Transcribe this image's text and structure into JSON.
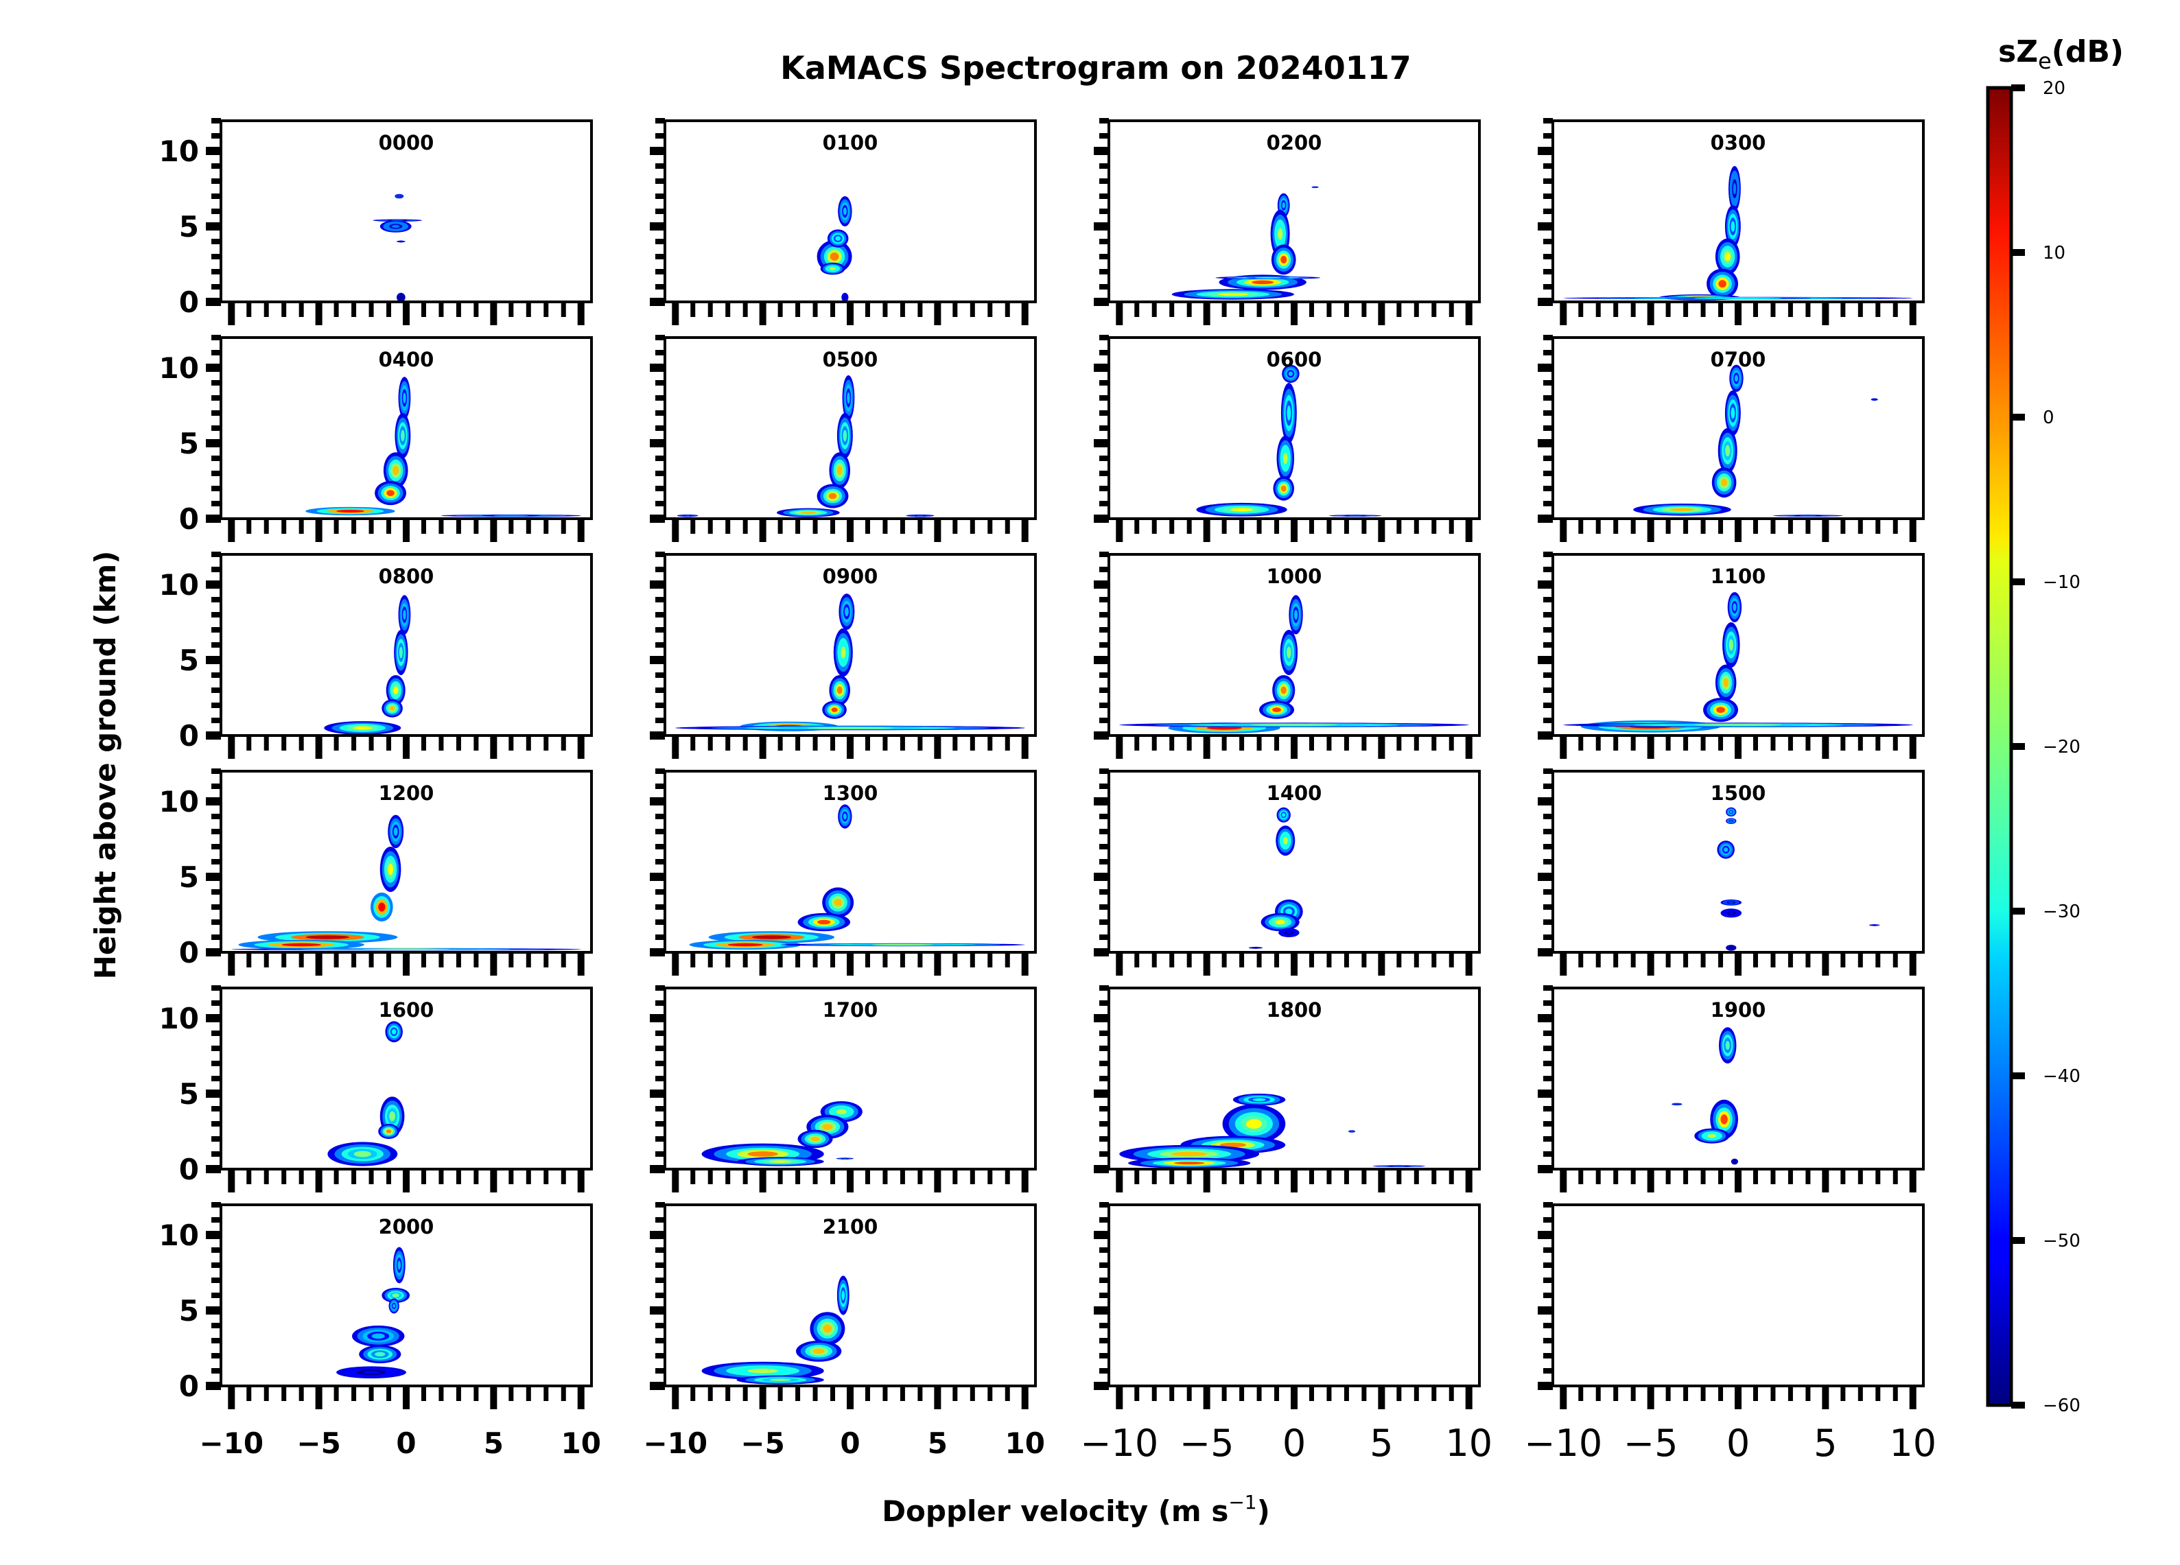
{
  "chart_data": {
    "type": "heatmap",
    "title": "KaMACS Spectrogram on 20240117",
    "xlabel": "Doppler velocity (m s",
    "xlabel_sup": "−1",
    "xlabel_close": ")",
    "ylabel": "Height above ground (km)",
    "xlim": [
      -10.6,
      10.6
    ],
    "ylim": [
      0,
      12
    ],
    "x_major_ticks": [
      -10,
      -5,
      0,
      5,
      10
    ],
    "x_tick_labels": [
      "−10",
      "−5",
      "0",
      "5",
      "10"
    ],
    "x_minor_step": 1,
    "y_major_ticks": [
      0,
      5,
      10
    ],
    "y_tick_labels": [
      "0",
      "5",
      "10"
    ],
    "y_minor_step": 1,
    "grid": false,
    "layout": {
      "rows": 6,
      "cols": 4
    },
    "colorbar": {
      "label_main": "sZ",
      "label_sub": "e",
      "label_unit": "(dB)",
      "colormap": "jet",
      "range": [
        -60,
        20
      ],
      "ticks": [
        20,
        10,
        0,
        -10,
        -20,
        -30,
        -40,
        -50,
        -60
      ],
      "tick_labels": [
        "20",
        "10",
        "0",
        "−10",
        "−20",
        "−30",
        "−40",
        "−50",
        "−60"
      ]
    },
    "panels": [
      {
        "title": "0000",
        "blobs": [
          [
            -0.6,
            5.0,
            0.9,
            0.4,
            -40
          ],
          [
            -0.5,
            5.4,
            1.4,
            0.08,
            -45
          ],
          [
            -0.4,
            7.0,
            0.25,
            0.15,
            -45
          ],
          [
            -0.3,
            4.0,
            0.25,
            0.06,
            -50
          ],
          [
            -0.3,
            0.3,
            0.25,
            0.3,
            -55
          ]
        ]
      },
      {
        "title": "0100",
        "blobs": [
          [
            -0.3,
            6.0,
            0.4,
            1.0,
            -35
          ],
          [
            -0.9,
            3.0,
            1.0,
            1.1,
            0
          ],
          [
            -1.0,
            2.2,
            0.7,
            0.4,
            -15
          ],
          [
            -0.7,
            4.2,
            0.6,
            0.6,
            -30
          ],
          [
            -0.3,
            0.3,
            0.2,
            0.3,
            -50
          ]
        ]
      },
      {
        "title": "0200",
        "blobs": [
          [
            -0.6,
            6.4,
            0.35,
            0.8,
            -35
          ],
          [
            -0.8,
            4.5,
            0.55,
            1.6,
            -15
          ],
          [
            -0.6,
            2.8,
            0.7,
            1.0,
            5
          ],
          [
            -1.8,
            1.3,
            2.5,
            0.5,
            5
          ],
          [
            -3.5,
            0.5,
            3.5,
            0.35,
            -10
          ],
          [
            -1.5,
            1.6,
            3.0,
            0.1,
            -30
          ],
          [
            1.2,
            7.6,
            0.2,
            0.06,
            -45
          ]
        ]
      },
      {
        "title": "0300",
        "blobs": [
          [
            -0.2,
            7.5,
            0.35,
            1.5,
            -40
          ],
          [
            -0.3,
            5.0,
            0.45,
            1.4,
            -30
          ],
          [
            -0.6,
            3.0,
            0.7,
            1.2,
            -10
          ],
          [
            -0.9,
            1.2,
            0.9,
            1.0,
            5
          ],
          [
            -2.2,
            0.3,
            2.3,
            0.2,
            0
          ],
          [
            0.0,
            0.25,
            10.0,
            0.08,
            -30
          ]
        ]
      },
      {
        "title": "0400",
        "blobs": [
          [
            -0.1,
            8.0,
            0.35,
            1.4,
            -35
          ],
          [
            -0.2,
            5.5,
            0.45,
            1.5,
            -25
          ],
          [
            -0.6,
            3.2,
            0.7,
            1.2,
            -5
          ],
          [
            -0.9,
            1.7,
            0.9,
            0.8,
            5
          ],
          [
            -3.2,
            0.5,
            3.2,
            0.35,
            10
          ],
          [
            6.0,
            0.2,
            4.0,
            0.08,
            -40
          ]
        ]
      },
      {
        "title": "0500",
        "blobs": [
          [
            -0.1,
            8.0,
            0.35,
            1.5,
            -35
          ],
          [
            -0.3,
            5.5,
            0.45,
            1.5,
            -25
          ],
          [
            -0.6,
            3.2,
            0.6,
            1.2,
            -5
          ],
          [
            -1.0,
            1.5,
            0.9,
            0.8,
            0
          ],
          [
            -2.4,
            0.4,
            1.8,
            0.3,
            -5
          ],
          [
            4.0,
            0.2,
            0.8,
            0.08,
            -45
          ],
          [
            -9.3,
            0.2,
            0.6,
            0.08,
            -45
          ]
        ]
      },
      {
        "title": "0600",
        "blobs": [
          [
            -0.2,
            9.6,
            0.5,
            0.6,
            -35
          ],
          [
            -0.3,
            7.0,
            0.45,
            2.0,
            -30
          ],
          [
            -0.5,
            4.0,
            0.5,
            1.5,
            -15
          ],
          [
            -0.6,
            2.0,
            0.6,
            0.8,
            0
          ],
          [
            -3.0,
            0.6,
            2.6,
            0.45,
            -10
          ],
          [
            3.5,
            0.2,
            1.5,
            0.06,
            -45
          ]
        ]
      },
      {
        "title": "0700",
        "blobs": [
          [
            -0.1,
            9.3,
            0.4,
            0.9,
            -35
          ],
          [
            -0.3,
            7.0,
            0.45,
            1.5,
            -30
          ],
          [
            -0.6,
            4.5,
            0.55,
            1.5,
            -20
          ],
          [
            -0.8,
            2.4,
            0.7,
            1.0,
            -5
          ],
          [
            -3.2,
            0.6,
            2.8,
            0.4,
            -5
          ],
          [
            4.0,
            0.2,
            2.0,
            0.06,
            -45
          ],
          [
            7.8,
            7.9,
            0.2,
            0.08,
            -50
          ]
        ]
      },
      {
        "title": "0800",
        "blobs": [
          [
            -0.1,
            8.0,
            0.35,
            1.3,
            -35
          ],
          [
            -0.3,
            5.5,
            0.4,
            1.5,
            -25
          ],
          [
            -0.6,
            3.0,
            0.55,
            1.0,
            -10
          ],
          [
            -0.8,
            1.8,
            0.6,
            0.6,
            -5
          ],
          [
            -2.5,
            0.5,
            2.2,
            0.45,
            -10
          ]
        ]
      },
      {
        "title": "0900",
        "blobs": [
          [
            -0.2,
            8.2,
            0.45,
            1.2,
            -35
          ],
          [
            -0.4,
            5.5,
            0.55,
            1.6,
            -15
          ],
          [
            -0.6,
            3.0,
            0.6,
            1.0,
            0
          ],
          [
            -0.9,
            1.7,
            0.7,
            0.6,
            5
          ],
          [
            -3.5,
            0.6,
            3.5,
            0.4,
            10
          ],
          [
            0.0,
            0.5,
            10.0,
            0.15,
            -20
          ]
        ]
      },
      {
        "title": "1000",
        "blobs": [
          [
            0.1,
            8.0,
            0.4,
            1.3,
            -35
          ],
          [
            -0.3,
            5.5,
            0.5,
            1.5,
            -20
          ],
          [
            -0.6,
            3.0,
            0.65,
            1.0,
            0
          ],
          [
            -1.0,
            1.7,
            1.0,
            0.6,
            5
          ],
          [
            -4.0,
            0.5,
            4.0,
            0.45,
            10
          ],
          [
            0.0,
            0.7,
            10.0,
            0.15,
            -20
          ]
        ]
      },
      {
        "title": "1100",
        "blobs": [
          [
            -0.2,
            8.5,
            0.4,
            1.0,
            -35
          ],
          [
            -0.4,
            6.0,
            0.5,
            1.5,
            -20
          ],
          [
            -0.7,
            3.5,
            0.6,
            1.2,
            -5
          ],
          [
            -1.0,
            1.7,
            1.0,
            0.8,
            5
          ],
          [
            -5.0,
            0.6,
            5.0,
            0.5,
            15
          ],
          [
            0.0,
            0.7,
            10.0,
            0.15,
            -20
          ]
        ]
      },
      {
        "title": "1200",
        "blobs": [
          [
            -0.6,
            8.0,
            0.45,
            1.1,
            -35
          ],
          [
            -0.9,
            5.5,
            0.6,
            1.5,
            -10
          ],
          [
            -1.4,
            3.0,
            0.8,
            1.2,
            10
          ],
          [
            -4.5,
            1.0,
            5.0,
            0.5,
            15
          ],
          [
            -6.0,
            0.5,
            4.5,
            0.4,
            10
          ],
          [
            0.0,
            0.2,
            10.0,
            0.08,
            -20
          ]
        ]
      },
      {
        "title": "1300",
        "blobs": [
          [
            -0.3,
            9.0,
            0.4,
            0.8,
            -35
          ],
          [
            -0.7,
            3.3,
            0.9,
            1.0,
            -5
          ],
          [
            -1.5,
            2.0,
            1.5,
            0.6,
            5
          ],
          [
            -4.5,
            1.0,
            4.5,
            0.5,
            15
          ],
          [
            -6.0,
            0.5,
            4.0,
            0.4,
            10
          ],
          [
            3.0,
            0.5,
            7.0,
            0.1,
            -20
          ]
        ]
      },
      {
        "title": "1400",
        "blobs": [
          [
            -0.6,
            9.1,
            0.4,
            0.5,
            -30
          ],
          [
            -0.5,
            7.4,
            0.55,
            1.0,
            -15
          ],
          [
            -0.3,
            2.7,
            0.8,
            0.8,
            -30
          ],
          [
            -0.8,
            2.0,
            1.1,
            0.6,
            -10
          ],
          [
            -0.3,
            1.3,
            0.6,
            0.3,
            -50
          ],
          [
            -2.2,
            0.3,
            0.4,
            0.06,
            -55
          ]
        ]
      },
      {
        "title": "1500",
        "blobs": [
          [
            -0.4,
            9.3,
            0.3,
            0.3,
            -35
          ],
          [
            -0.4,
            8.7,
            0.3,
            0.2,
            -40
          ],
          [
            -0.7,
            6.8,
            0.5,
            0.6,
            -35
          ],
          [
            -0.4,
            3.3,
            0.6,
            0.2,
            -45
          ],
          [
            -0.4,
            2.6,
            0.6,
            0.3,
            -50
          ],
          [
            7.8,
            1.8,
            0.3,
            0.05,
            -50
          ],
          [
            -0.4,
            0.3,
            0.3,
            0.2,
            -55
          ]
        ]
      },
      {
        "title": "1600",
        "blobs": [
          [
            -0.7,
            9.1,
            0.5,
            0.7,
            -30
          ],
          [
            -0.8,
            3.5,
            0.7,
            1.3,
            -20
          ],
          [
            -1.0,
            2.5,
            0.6,
            0.5,
            0
          ],
          [
            -2.5,
            1.0,
            2.0,
            0.8,
            -20
          ]
        ]
      },
      {
        "title": "1700",
        "blobs": [
          [
            -0.5,
            3.8,
            1.2,
            0.7,
            -15
          ],
          [
            -1.3,
            2.8,
            1.2,
            0.8,
            -5
          ],
          [
            -2.0,
            2.0,
            1.0,
            0.6,
            -5
          ],
          [
            -5.0,
            1.0,
            3.5,
            0.7,
            0
          ],
          [
            -4.0,
            0.5,
            2.5,
            0.3,
            -10
          ],
          [
            -0.3,
            0.7,
            0.5,
            0.05,
            -45
          ]
        ]
      },
      {
        "title": "1800",
        "blobs": [
          [
            -2.0,
            4.6,
            1.5,
            0.4,
            -30
          ],
          [
            -2.3,
            3.0,
            1.8,
            1.3,
            -10
          ],
          [
            -3.5,
            1.6,
            3.0,
            0.6,
            0
          ],
          [
            -6.0,
            1.0,
            4.0,
            0.6,
            -5
          ],
          [
            -6.0,
            0.4,
            3.5,
            0.35,
            5
          ],
          [
            3.3,
            2.5,
            0.2,
            0.08,
            -45
          ],
          [
            6.0,
            0.2,
            1.5,
            0.06,
            -45
          ]
        ]
      },
      {
        "title": "1900",
        "blobs": [
          [
            -0.6,
            8.2,
            0.5,
            1.2,
            -25
          ],
          [
            -0.8,
            3.3,
            0.8,
            1.3,
            5
          ],
          [
            -1.5,
            2.2,
            1.0,
            0.5,
            -15
          ],
          [
            -3.5,
            4.3,
            0.3,
            0.08,
            -45
          ],
          [
            -0.2,
            0.5,
            0.2,
            0.2,
            -55
          ]
        ]
      },
      {
        "title": "2000",
        "blobs": [
          [
            -0.4,
            8.0,
            0.35,
            1.2,
            -35
          ],
          [
            -0.6,
            6.0,
            0.8,
            0.5,
            -20
          ],
          [
            -0.7,
            5.3,
            0.3,
            0.5,
            -35
          ],
          [
            -1.6,
            3.3,
            1.5,
            0.7,
            -35
          ],
          [
            -1.5,
            2.1,
            1.2,
            0.6,
            -25
          ],
          [
            -2.0,
            0.9,
            2.0,
            0.4,
            -50
          ]
        ]
      },
      {
        "title": "2100",
        "blobs": [
          [
            -0.4,
            6.0,
            0.35,
            1.3,
            -30
          ],
          [
            -1.3,
            3.8,
            1.0,
            1.1,
            -5
          ],
          [
            -1.8,
            2.3,
            1.3,
            0.7,
            -5
          ],
          [
            -5.0,
            1.0,
            3.5,
            0.6,
            -15
          ],
          [
            -4.0,
            0.4,
            2.5,
            0.3,
            -20
          ]
        ]
      },
      {
        "title": "",
        "blobs": []
      },
      {
        "title": "",
        "blobs": []
      }
    ]
  }
}
